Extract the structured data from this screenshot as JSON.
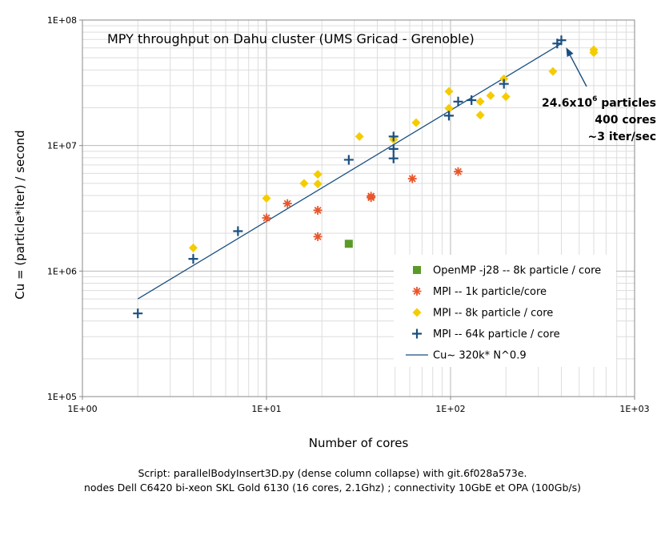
{
  "chart_data": {
    "type": "scatter",
    "title": "MPY throughput on Dahu cluster (UMS Gricad - Grenoble)",
    "xlabel": "Number of cores",
    "ylabel": "Cu = (particle*iter) / second",
    "xscale": "log",
    "yscale": "log",
    "xlim": [
      1,
      1000
    ],
    "ylim": [
      100000,
      100000000
    ],
    "x_ticks": [
      1,
      10,
      100,
      1000
    ],
    "x_tick_labels": [
      "1E+00",
      "1E+01",
      "1E+02",
      "1E+03"
    ],
    "y_ticks": [
      100000,
      1000000,
      10000000,
      100000000
    ],
    "y_tick_labels": [
      "1E+05",
      "1E+06",
      "1E+07",
      "1E+08"
    ],
    "grid": true,
    "legend_position": "lower-right",
    "series": [
      {
        "name": "OpenMP -j28 -- 8k particle / core",
        "marker": "square",
        "color": "#5a9a28",
        "points": [
          [
            28,
            1650000
          ]
        ]
      },
      {
        "name": "MPI -- 1k particle/core",
        "marker": "star",
        "color": "#e8562a",
        "points": [
          [
            10,
            2650000
          ],
          [
            13,
            3450000
          ],
          [
            19,
            3050000
          ],
          [
            19,
            1880000
          ],
          [
            37,
            3850000
          ],
          [
            37,
            3950000
          ],
          [
            62,
            5450000
          ],
          [
            110,
            6200000
          ]
        ]
      },
      {
        "name": "MPI -- 8k particle / core",
        "marker": "diamond",
        "color": "#f5cc00",
        "points": [
          [
            4,
            1530000
          ],
          [
            10,
            3800000
          ],
          [
            16,
            5000000
          ],
          [
            19,
            4950000
          ],
          [
            19,
            5900000
          ],
          [
            32,
            11800000
          ],
          [
            49,
            11200000
          ],
          [
            65,
            15200000
          ],
          [
            98,
            19800000
          ],
          [
            98,
            27000000
          ],
          [
            145,
            17500000
          ],
          [
            145,
            22400000
          ],
          [
            165,
            25000000
          ],
          [
            195,
            34000000
          ],
          [
            200,
            24500000
          ],
          [
            360,
            39000000
          ],
          [
            600,
            55000000
          ],
          [
            600,
            58000000
          ]
        ]
      },
      {
        "name": "MPI -- 64k particle / core",
        "marker": "plus",
        "color": "#1a4f80",
        "points": [
          [
            2,
            460000
          ],
          [
            4,
            1250000
          ],
          [
            7,
            2080000
          ],
          [
            28,
            7700000
          ],
          [
            49,
            11800000
          ],
          [
            49,
            9400000
          ],
          [
            49,
            7900000
          ],
          [
            98,
            17300000
          ],
          [
            110,
            22400000
          ],
          [
            130,
            23000000
          ],
          [
            195,
            31000000
          ],
          [
            380,
            65000000
          ],
          [
            400,
            69000000
          ]
        ]
      },
      {
        "name": "Cu~ 320k* N^0.9",
        "marker": "line",
        "color": "#1a4f80",
        "points": [
          [
            2,
            600000
          ],
          [
            400,
            65000000
          ]
        ]
      }
    ],
    "annotation": {
      "lines": [
        "24.6x10",
        "400 cores",
        "~3 iter/sec"
      ],
      "superscript": "6",
      "line1_suffix": " particles",
      "arrow_to": [
        400,
        66000000
      ]
    }
  },
  "footnote": {
    "line1": "Script: parallelBodyInsert3D.py (dense column collapse) with git.6f028a573e.",
    "line2": "nodes Dell C6420 bi-xeon SKL Gold 6130 (16 cores, 2.1Ghz) ; connectivity 10GbE et OPA (100Gb/s)"
  }
}
